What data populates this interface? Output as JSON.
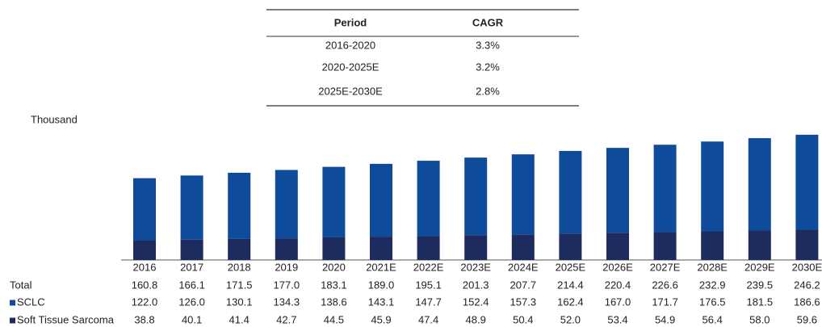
{
  "cagr_table": {
    "columns": [
      "Period",
      "CAGR"
    ],
    "rows": [
      [
        "2016-2020",
        "3.3%"
      ],
      [
        "2020-2025E",
        "3.2%"
      ],
      [
        "2025E-2030E",
        "2.8%"
      ]
    ]
  },
  "chart_data": {
    "type": "bar",
    "stacked": true,
    "unit_label": "Thousand",
    "categories": [
      "2016",
      "2017",
      "2018",
      "2019",
      "2020",
      "2021E",
      "2022E",
      "2023E",
      "2024E",
      "2025E",
      "2026E",
      "2027E",
      "2028E",
      "2029E",
      "2030E"
    ],
    "ylim": [
      0,
      250
    ],
    "series": [
      {
        "name": "SCLC",
        "color": "#0e4c9b",
        "values": [
          122.0,
          126.0,
          130.1,
          134.3,
          138.6,
          143.1,
          147.7,
          152.4,
          157.3,
          162.4,
          167.0,
          171.7,
          176.5,
          181.5,
          186.6
        ],
        "value_labels": [
          "122.0",
          "126.0",
          "130.1",
          "134.3",
          "138.6",
          "143.1",
          "147.7",
          "152.4",
          "157.3",
          "162.4",
          "167.0",
          "171.7",
          "176.5",
          "181.5",
          "186.6"
        ]
      },
      {
        "name": "Soft Tissue Sarcoma",
        "color": "#1e2b5e",
        "values": [
          38.8,
          40.1,
          41.4,
          42.7,
          44.5,
          45.9,
          47.4,
          48.9,
          50.4,
          52.0,
          53.4,
          54.9,
          56.4,
          58.0,
          59.6
        ],
        "value_labels": [
          "38.8",
          "40.1",
          "41.4",
          "42.7",
          "44.5",
          "45.9",
          "47.4",
          "48.9",
          "50.4",
          "52.0",
          "53.4",
          "54.9",
          "56.4",
          "58.0",
          "59.6"
        ]
      }
    ],
    "totals": {
      "name": "Total",
      "values": [
        160.8,
        166.1,
        171.5,
        177.0,
        183.1,
        189.0,
        195.1,
        201.3,
        207.7,
        214.4,
        220.4,
        226.6,
        232.9,
        239.5,
        246.2
      ],
      "value_labels": [
        "160.8",
        "166.1",
        "171.5",
        "177.0",
        "183.1",
        "189.0",
        "195.1",
        "201.3",
        "207.7",
        "214.4",
        "220.4",
        "226.6",
        "232.9",
        "239.5",
        "246.2"
      ]
    }
  }
}
